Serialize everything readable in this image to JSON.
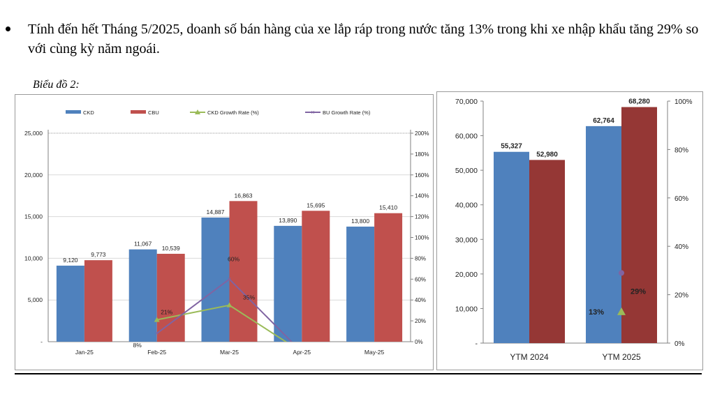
{
  "text": {
    "bullet": "Tính đến hết Tháng 5/2025, doanh số bán hàng của xe lắp ráp trong nước tăng 13% trong khi xe nhập khẩu tăng 29% so với cùng kỳ năm ngoái.",
    "caption": "Biểu đồ 2:"
  },
  "colors": {
    "ckd": "#4f81bd",
    "cbu": "#c0504d",
    "ckd_growth": "#9bbb59",
    "bu_growth": "#8064a2",
    "cbu_dark": "#953735"
  },
  "chart_data": [
    {
      "type": "bar",
      "categories": [
        "Jan-25",
        "Feb-25",
        "Mar-25",
        "Apr-25",
        "May-25"
      ],
      "series": [
        {
          "name": "CKD",
          "values": [
            9120,
            11067,
            14887,
            13890,
            13800
          ],
          "labels": [
            "9,120",
            "11,067",
            "14,887",
            "13,890",
            "13,800"
          ]
        },
        {
          "name": "CBU",
          "values": [
            9773,
            10539,
            16863,
            15695,
            15410
          ],
          "labels": [
            "9,773",
            "10,539",
            "16,863",
            "15,695",
            "15,410"
          ]
        }
      ],
      "line_series": [
        {
          "name": "CKD Growth Rate (%)",
          "x": [
            "Feb-25",
            "Mar-25",
            "Apr-25"
          ],
          "values": [
            21,
            35,
            -10
          ],
          "labels": [
            "21%",
            "35%",
            ""
          ]
        },
        {
          "name": "BU Growth Rate (%)",
          "x": [
            "Feb-25",
            "Mar-25",
            "Apr-25"
          ],
          "values": [
            8,
            60,
            -10
          ],
          "labels": [
            "8%",
            "60%",
            ""
          ]
        }
      ],
      "ylim": [
        0,
        25000
      ],
      "yticks": [
        0,
        5000,
        10000,
        15000,
        20000,
        25000
      ],
      "ytick_labels": [
        "-",
        "5,000",
        "10,000",
        "15,000",
        "20,000",
        "25,000"
      ],
      "y2lim": [
        0,
        200
      ],
      "y2ticks": [
        0,
        20,
        40,
        60,
        80,
        100,
        120,
        140,
        160,
        180,
        200
      ],
      "y2tick_labels": [
        "0%",
        "20%",
        "40%",
        "60%",
        "80%",
        "100%",
        "120%",
        "140%",
        "160%",
        "180%",
        "200%"
      ],
      "legend": "top",
      "grid": true
    },
    {
      "type": "bar",
      "categories": [
        "YTM 2024",
        "YTM 2025"
      ],
      "series": [
        {
          "name": "CKD",
          "values": [
            55327,
            62764
          ],
          "labels": [
            "55,327",
            "62,764"
          ]
        },
        {
          "name": "CBU",
          "values": [
            52980,
            68280
          ],
          "labels": [
            "52,980",
            "68,280"
          ]
        }
      ],
      "markers": [
        {
          "name": "CKD growth",
          "x": "YTM 2025",
          "value": 13,
          "label": "13%"
        },
        {
          "name": "CBU growth",
          "x": "YTM 2025",
          "value": 29,
          "label": "29%"
        }
      ],
      "ylim": [
        0,
        70000
      ],
      "yticks": [
        0,
        10000,
        20000,
        30000,
        40000,
        50000,
        60000,
        70000
      ],
      "ytick_labels": [
        "-",
        "10,000",
        "20,000",
        "30,000",
        "40,000",
        "50,000",
        "60,000",
        "70,000"
      ],
      "y2lim": [
        0,
        100
      ],
      "y2ticks": [
        0,
        20,
        40,
        60,
        80,
        100
      ],
      "y2tick_labels": [
        "0%",
        "20%",
        "40%",
        "60%",
        "80%",
        "100%"
      ],
      "grid": false
    }
  ]
}
